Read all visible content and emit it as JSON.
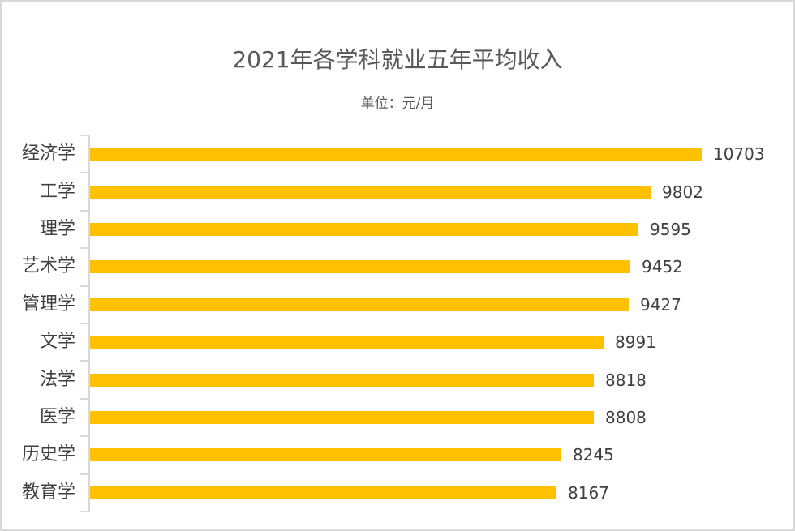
{
  "chart_data": {
    "type": "bar",
    "orientation": "horizontal",
    "title": "2021年各学科就业五年平均收入",
    "subtitle": "单位：元/月",
    "xlabel": "",
    "ylabel": "",
    "categories": [
      "经济学",
      "工学",
      "理学",
      "艺术学",
      "管理学",
      "文学",
      "法学",
      "医学",
      "历史学",
      "教育学"
    ],
    "values": [
      10703,
      9802,
      9595,
      9452,
      9427,
      8991,
      8818,
      8808,
      8245,
      8167
    ],
    "series": [
      {
        "name": "五年平均收入",
        "values": [
          10703,
          9802,
          9595,
          9452,
          9427,
          8991,
          8818,
          8808,
          8245,
          8167
        ],
        "color": "#ffc000"
      }
    ],
    "xlim": [
      0,
      10703
    ],
    "grid": false,
    "legend": "none",
    "data_labels": true
  },
  "colors": {
    "bar": "#ffc000",
    "text": "#404040",
    "title": "#595959",
    "axis": "#d9d9d9",
    "border": "#d9d9d9"
  }
}
